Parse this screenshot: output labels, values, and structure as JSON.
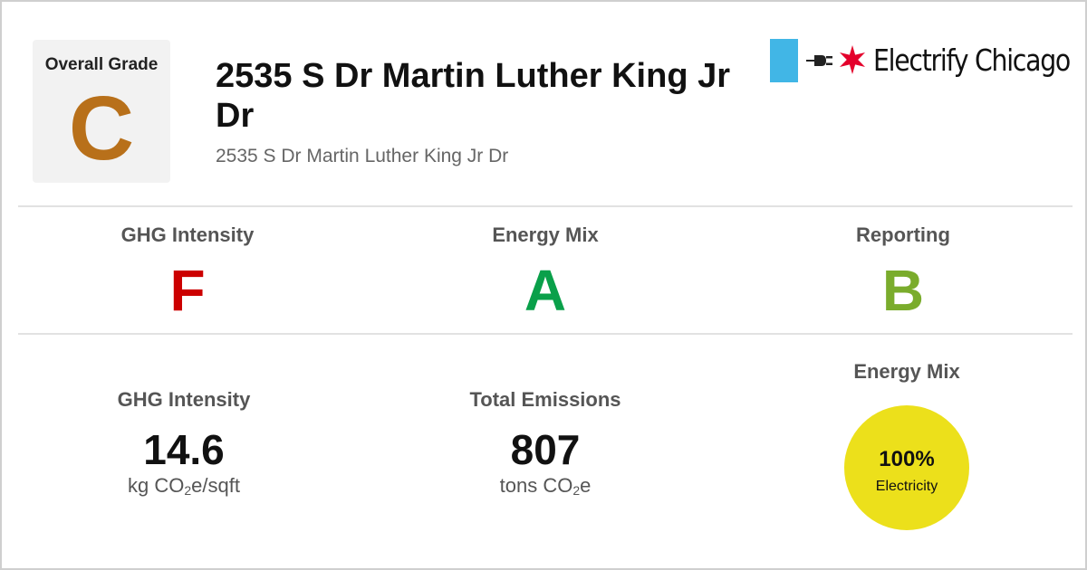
{
  "overall": {
    "title": "Overall Grade",
    "grade": "C",
    "color": "#b8701a"
  },
  "building": {
    "name": "2535 S Dr Martin Luther King Jr Dr",
    "address": "2535 S Dr Martin Luther King Jr Dr"
  },
  "logo": {
    "brand": "Electrify Chicago",
    "icons": [
      "plug-icon",
      "chicago-star-icon"
    ],
    "flag_color": "#41b6e6",
    "star_color": "#e4002b"
  },
  "grades": [
    {
      "label": "GHG Intensity",
      "grade": "F",
      "color": "#cc0000"
    },
    {
      "label": "Energy Mix",
      "grade": "A",
      "color": "#0aa04a"
    },
    {
      "label": "Reporting",
      "grade": "B",
      "color": "#7aac2c"
    }
  ],
  "stats": {
    "ghg_intensity": {
      "label": "GHG Intensity",
      "value": "14.6",
      "unit_pre": "kg CO",
      "unit_sub": "2",
      "unit_post": "e/sqft"
    },
    "total_emissions": {
      "label": "Total Emissions",
      "value": "807",
      "unit_pre": "tons CO",
      "unit_sub": "2",
      "unit_post": "e"
    },
    "energy_mix": {
      "label": "Energy Mix",
      "percent": "100%",
      "source": "Electricity",
      "fraction": 1.0,
      "color": "#ece01b"
    }
  }
}
